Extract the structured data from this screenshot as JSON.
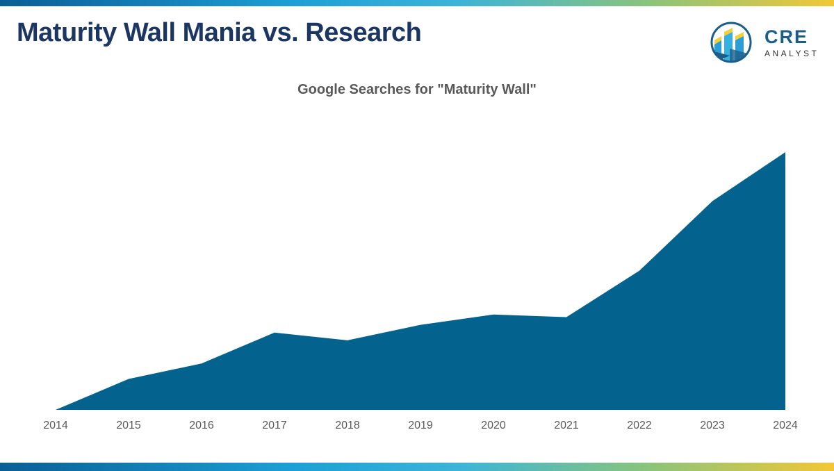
{
  "header": {
    "title": "Maturity Wall Mania vs. Research"
  },
  "logo": {
    "line1": "CRE",
    "line2": "ANALYST"
  },
  "chart_data": {
    "type": "area",
    "title": "Google Searches for \"Maturity Wall\"",
    "categories": [
      "2014",
      "2015",
      "2016",
      "2017",
      "2018",
      "2019",
      "2020",
      "2021",
      "2022",
      "2023",
      "2024"
    ],
    "series": [
      {
        "values": [
          0,
          12,
          18,
          30,
          27,
          33,
          37,
          36,
          54,
          81,
          100
        ]
      }
    ],
    "ylim": [
      0,
      100
    ],
    "xlabel": "",
    "ylabel": "",
    "grid": false,
    "y_axis_shown": false,
    "color": "#04628f"
  }
}
